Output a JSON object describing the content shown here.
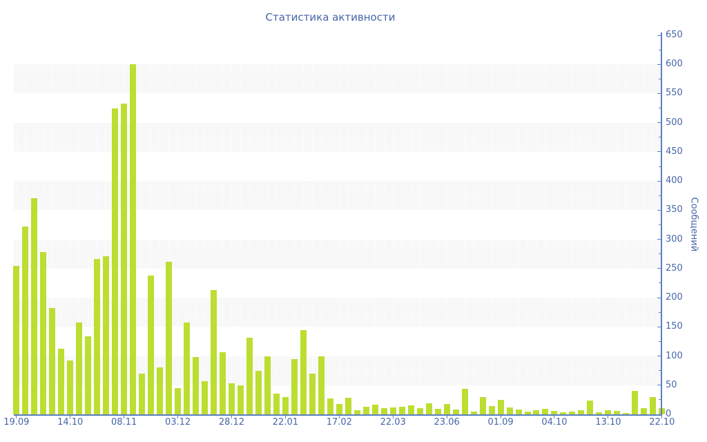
{
  "title": "Статистика активности",
  "colors": {
    "bar_fill": "#bbde31",
    "stripe_band": "#f8f8f9",
    "axis_line": "#5b7ec2",
    "label_text": "#4565a8",
    "background": "#ffffff"
  },
  "chart_data": {
    "type": "bar",
    "title": "Статистика активности",
    "xlabel": "",
    "ylabel": "Сообщений",
    "ylim": [
      0,
      650
    ],
    "y_tick_step": 50,
    "y_minor_tick_step": 25,
    "y_tick_labels": [
      "0",
      "50",
      "100",
      "150",
      "200",
      "250",
      "300",
      "350",
      "400",
      "450",
      "500",
      "550",
      "600",
      "650"
    ],
    "x_tick_labels": [
      "19.09",
      "14.10",
      "08.11",
      "03.12",
      "28.12",
      "22.01",
      "17.02",
      "22.03",
      "23.06",
      "01.09",
      "04.10",
      "13.10",
      "22.10"
    ],
    "x_label_every_n_bars": 6,
    "legend_position": "none",
    "grid": "alternating horizontal gray bands each 50 units; faint white dashed vertical lines",
    "values": [
      255,
      322,
      370,
      278,
      182,
      112,
      92,
      157,
      134,
      266,
      271,
      525,
      533,
      600,
      70,
      238,
      80,
      262,
      45,
      158,
      98,
      57,
      213,
      107,
      53,
      50,
      131,
      75,
      100,
      35,
      30,
      95,
      145,
      70,
      100,
      27,
      18,
      29,
      7,
      13,
      17,
      11,
      12,
      13,
      15,
      11,
      19,
      10,
      18,
      8,
      44,
      5,
      30,
      14,
      25,
      12,
      8,
      5,
      7,
      10,
      6,
      3,
      5,
      7,
      24,
      4,
      7,
      6,
      2,
      40,
      11,
      30,
      11
    ]
  }
}
